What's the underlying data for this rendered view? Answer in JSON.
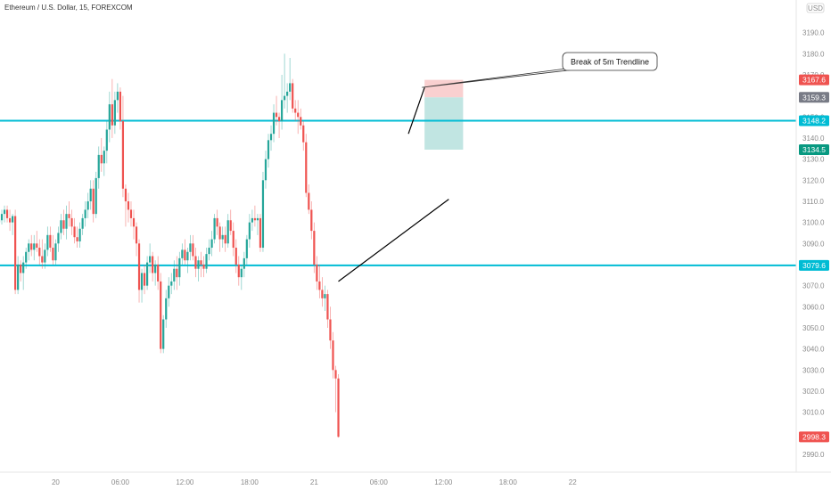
{
  "header": {
    "symbol_title": "Ethereum / U.S. Dollar, 15, FOREXCOM"
  },
  "currency_badge": "USD",
  "colors": {
    "up": "#26a69a",
    "down": "#ef5350",
    "horizontal_line": "#00bcd4",
    "stop_zone": "#f8c4c4",
    "target_zone": "#b2dfdb",
    "trendline": "#000000",
    "grey_tag": "#787b86",
    "teal_tag": "#089981"
  },
  "chart_data": {
    "type": "candlestick",
    "title": "Ethereum / U.S. Dollar, 15, FOREXCOM",
    "y_axis": {
      "side": "right",
      "ylim": [
        2985,
        3200
      ],
      "ticks": [
        3190,
        3180,
        3170,
        3160,
        3150,
        3140,
        3130,
        3120,
        3110,
        3100,
        3090,
        3080,
        3070,
        3060,
        3050,
        3040,
        3030,
        3020,
        3010,
        2990
      ]
    },
    "x_axis": {
      "xlim": [
        0,
        242
      ],
      "ticks": [
        {
          "label": "20",
          "x": 21
        },
        {
          "label": "06:00",
          "x": 45
        },
        {
          "label": "12:00",
          "x": 69
        },
        {
          "label": "18:00",
          "x": 93
        },
        {
          "label": "21",
          "x": 117
        },
        {
          "label": "06:00",
          "x": 141
        },
        {
          "label": "12:00",
          "x": 165
        },
        {
          "label": "18:00",
          "x": 189
        },
        {
          "label": "22",
          "x": 213
        }
      ]
    },
    "price_tags": [
      {
        "label": "3167.6",
        "value": 3167.6,
        "style": "red"
      },
      {
        "label": "3159.3",
        "value": 3159.3,
        "style": "grey"
      },
      {
        "label": "3148.2",
        "value": 3148.2,
        "style": "cyan"
      },
      {
        "label": "3134.5",
        "value": 3134.5,
        "style": "teal"
      },
      {
        "label": "3079.6",
        "value": 3079.6,
        "style": "cyan"
      },
      {
        "label": "2998.3",
        "value": 2998.3,
        "style": "red"
      }
    ],
    "horizontal_lines": [
      3148.2,
      3079.6
    ],
    "trendlines": [
      {
        "x1": 126,
        "y1": 3072,
        "x2": 167,
        "y2": 3111
      },
      {
        "x1": 152,
        "y1": 3142,
        "x2": 158,
        "y2": 3164
      }
    ],
    "position_tool": {
      "x_start": 158,
      "x_end": 169,
      "entry": 3159.3,
      "stop": 3167.6,
      "target": 3134.5
    },
    "annotation": {
      "text": "Break of 5m Trendline",
      "anchor_x": 157,
      "anchor_y": 3164
    },
    "candles": [
      [
        3100,
        3104,
        3096,
        3101
      ],
      [
        3101,
        3106,
        3099,
        3104
      ],
      [
        3104,
        3108,
        3100,
        3106
      ],
      [
        3106,
        3108,
        3100,
        3102
      ],
      [
        3102,
        3106,
        3096,
        3100
      ],
      [
        3100,
        3104,
        3094,
        3103
      ],
      [
        3103,
        3106,
        3066,
        3068
      ],
      [
        3068,
        3084,
        3066,
        3080
      ],
      [
        3080,
        3082,
        3072,
        3076
      ],
      [
        3076,
        3084,
        3068,
        3081
      ],
      [
        3081,
        3088,
        3078,
        3086
      ],
      [
        3086,
        3092,
        3082,
        3090
      ],
      [
        3090,
        3094,
        3084,
        3087
      ],
      [
        3087,
        3094,
        3082,
        3090
      ],
      [
        3090,
        3096,
        3086,
        3088
      ],
      [
        3088,
        3092,
        3080,
        3084
      ],
      [
        3084,
        3092,
        3078,
        3081
      ],
      [
        3081,
        3090,
        3078,
        3087
      ],
      [
        3087,
        3098,
        3084,
        3094
      ],
      [
        3094,
        3098,
        3086,
        3088
      ],
      [
        3088,
        3094,
        3080,
        3082
      ],
      [
        3082,
        3092,
        3080,
        3090
      ],
      [
        3090,
        3098,
        3086,
        3095
      ],
      [
        3095,
        3104,
        3092,
        3101
      ],
      [
        3101,
        3106,
        3094,
        3097
      ],
      [
        3097,
        3108,
        3092,
        3104
      ],
      [
        3104,
        3110,
        3098,
        3102
      ],
      [
        3102,
        3106,
        3094,
        3098
      ],
      [
        3098,
        3102,
        3090,
        3093
      ],
      [
        3093,
        3098,
        3088,
        3091
      ],
      [
        3091,
        3100,
        3088,
        3097
      ],
      [
        3097,
        3104,
        3094,
        3102
      ],
      [
        3102,
        3110,
        3098,
        3106
      ],
      [
        3106,
        3114,
        3102,
        3110
      ],
      [
        3110,
        3120,
        3106,
        3116
      ],
      [
        3116,
        3120,
        3100,
        3104
      ],
      [
        3104,
        3124,
        3102,
        3121
      ],
      [
        3121,
        3136,
        3116,
        3132
      ],
      [
        3132,
        3140,
        3124,
        3128
      ],
      [
        3128,
        3136,
        3122,
        3134
      ],
      [
        3134,
        3148,
        3128,
        3144
      ],
      [
        3144,
        3162,
        3138,
        3156
      ],
      [
        3156,
        3168,
        3140,
        3146
      ],
      [
        3146,
        3162,
        3142,
        3158
      ],
      [
        3158,
        3166,
        3152,
        3162
      ],
      [
        3162,
        3164,
        3144,
        3148
      ],
      [
        3148,
        3160,
        3112,
        3116
      ],
      [
        3116,
        3118,
        3098,
        3110
      ],
      [
        3110,
        3114,
        3100,
        3106
      ],
      [
        3106,
        3110,
        3098,
        3102
      ],
      [
        3102,
        3106,
        3092,
        3098
      ],
      [
        3098,
        3100,
        3084,
        3090
      ],
      [
        3090,
        3092,
        3062,
        3068
      ],
      [
        3068,
        3078,
        3062,
        3076
      ],
      [
        3076,
        3080,
        3066,
        3070
      ],
      [
        3070,
        3084,
        3068,
        3081
      ],
      [
        3081,
        3090,
        3076,
        3084
      ],
      [
        3084,
        3086,
        3072,
        3076
      ],
      [
        3076,
        3082,
        3070,
        3080
      ],
      [
        3080,
        3084,
        3068,
        3072
      ],
      [
        3072,
        3076,
        3038,
        3040
      ],
      [
        3040,
        3056,
        3038,
        3054
      ],
      [
        3054,
        3068,
        3050,
        3064
      ],
      [
        3064,
        3074,
        3060,
        3070
      ],
      [
        3070,
        3076,
        3066,
        3072
      ],
      [
        3072,
        3082,
        3068,
        3078
      ],
      [
        3078,
        3084,
        3068,
        3074
      ],
      [
        3074,
        3086,
        3070,
        3083
      ],
      [
        3083,
        3090,
        3080,
        3087
      ],
      [
        3087,
        3092,
        3080,
        3082
      ],
      [
        3082,
        3088,
        3076,
        3086
      ],
      [
        3086,
        3094,
        3082,
        3090
      ],
      [
        3090,
        3094,
        3082,
        3084
      ],
      [
        3084,
        3088,
        3074,
        3078
      ],
      [
        3078,
        3084,
        3072,
        3082
      ],
      [
        3082,
        3086,
        3074,
        3080
      ],
      [
        3080,
        3084,
        3074,
        3078
      ],
      [
        3078,
        3088,
        3076,
        3085
      ],
      [
        3085,
        3092,
        3082,
        3088
      ],
      [
        3088,
        3096,
        3084,
        3092
      ],
      [
        3092,
        3104,
        3090,
        3102
      ],
      [
        3102,
        3106,
        3094,
        3098
      ],
      [
        3098,
        3100,
        3086,
        3092
      ],
      [
        3092,
        3098,
        3088,
        3094
      ],
      [
        3094,
        3098,
        3086,
        3090
      ],
      [
        3090,
        3104,
        3088,
        3101
      ],
      [
        3101,
        3106,
        3094,
        3096
      ],
      [
        3096,
        3100,
        3084,
        3088
      ],
      [
        3088,
        3092,
        3076,
        3080
      ],
      [
        3080,
        3084,
        3070,
        3074
      ],
      [
        3074,
        3080,
        3068,
        3078
      ],
      [
        3078,
        3086,
        3074,
        3083
      ],
      [
        3083,
        3094,
        3080,
        3092
      ],
      [
        3092,
        3104,
        3088,
        3100
      ],
      [
        3100,
        3106,
        3096,
        3102
      ],
      [
        3102,
        3108,
        3098,
        3101
      ],
      [
        3101,
        3104,
        3094,
        3102
      ],
      [
        3102,
        3104,
        3086,
        3088
      ],
      [
        3088,
        3124,
        3086,
        3120
      ],
      [
        3120,
        3134,
        3116,
        3130
      ],
      [
        3130,
        3142,
        3126,
        3139
      ],
      [
        3139,
        3146,
        3134,
        3142
      ],
      [
        3142,
        3156,
        3138,
        3152
      ],
      [
        3152,
        3160,
        3146,
        3150
      ],
      [
        3150,
        3152,
        3140,
        3148
      ],
      [
        3148,
        3170,
        3144,
        3158
      ],
      [
        3158,
        3180,
        3154,
        3160
      ],
      [
        3160,
        3166,
        3152,
        3162
      ],
      [
        3162,
        3178,
        3158,
        3166
      ],
      [
        3166,
        3168,
        3152,
        3154
      ],
      [
        3154,
        3158,
        3148,
        3152
      ],
      [
        3152,
        3158,
        3142,
        3150
      ],
      [
        3150,
        3154,
        3144,
        3146
      ],
      [
        3146,
        3148,
        3134,
        3138
      ],
      [
        3138,
        3142,
        3112,
        3114
      ],
      [
        3114,
        3118,
        3104,
        3106
      ],
      [
        3106,
        3110,
        3092,
        3096
      ],
      [
        3096,
        3100,
        3076,
        3080
      ],
      [
        3080,
        3084,
        3068,
        3072
      ],
      [
        3072,
        3080,
        3064,
        3068
      ],
      [
        3068,
        3074,
        3060,
        3064
      ],
      [
        3064,
        3070,
        3058,
        3066
      ],
      [
        3066,
        3068,
        3050,
        3054
      ],
      [
        3054,
        3060,
        3040,
        3044
      ],
      [
        3044,
        3048,
        3026,
        3030
      ],
      [
        3030,
        3032,
        3010,
        3026
      ],
      [
        3026,
        3028,
        2998,
        2998.3
      ]
    ]
  }
}
